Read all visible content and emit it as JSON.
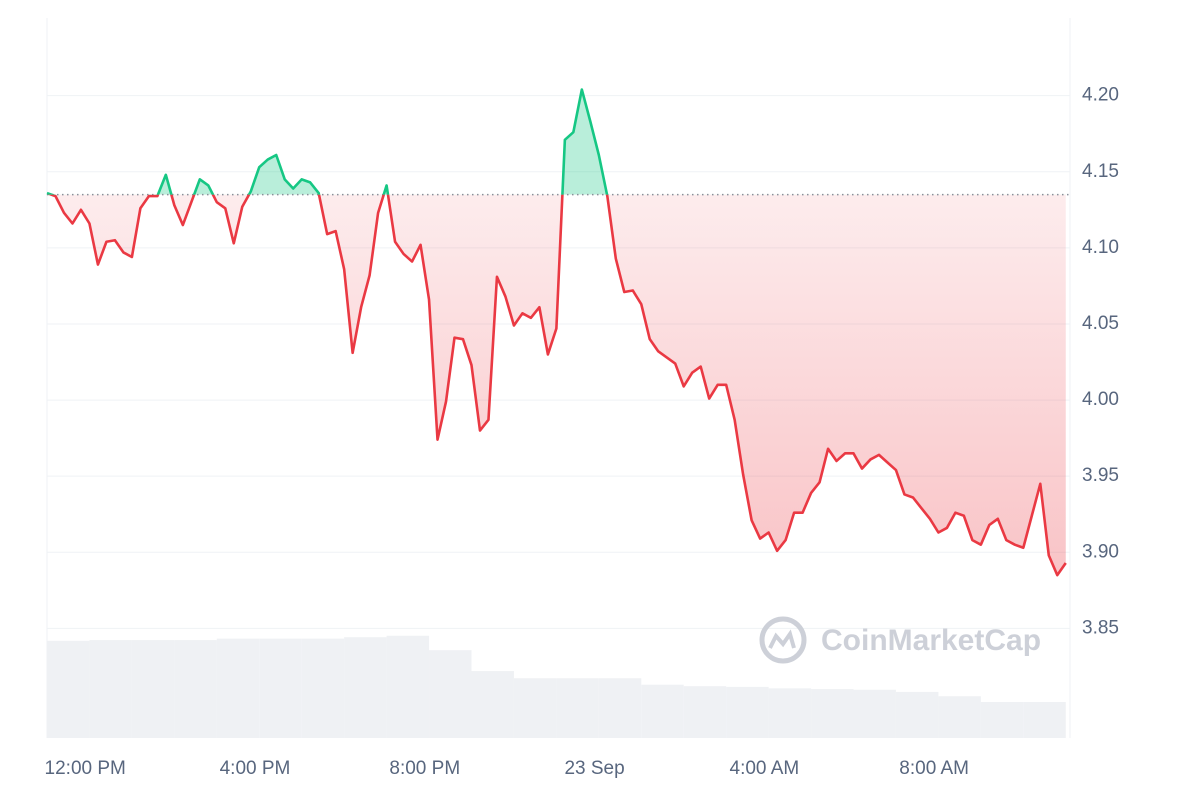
{
  "chart_data": {
    "type": "line",
    "x": [
      -0.9,
      -0.7,
      -0.5,
      -0.3,
      -0.1,
      0.1,
      0.3,
      0.5,
      0.7,
      0.9,
      1.1,
      1.3,
      1.5,
      1.7,
      1.9,
      2.1,
      2.3,
      2.5,
      2.7,
      2.9,
      3.1,
      3.3,
      3.5,
      3.7,
      3.9,
      4.1,
      4.3,
      4.5,
      4.7,
      4.9,
      5.1,
      5.3,
      5.5,
      5.7,
      5.9,
      6.1,
      6.3,
      6.5,
      6.7,
      6.9,
      7.1,
      7.3,
      7.5,
      7.7,
      7.9,
      8.1,
      8.3,
      8.5,
      8.7,
      8.9,
      9.1,
      9.3,
      9.5,
      9.7,
      9.9,
      10.1,
      10.3,
      10.5,
      10.7,
      10.9,
      11.1,
      11.3,
      11.5,
      11.7,
      11.9,
      12.1,
      12.3,
      12.5,
      12.7,
      12.9,
      13.1,
      13.3,
      13.5,
      13.7,
      13.9,
      14.1,
      14.3,
      14.5,
      14.7,
      14.9,
      15.1,
      15.3,
      15.5,
      15.7,
      15.9,
      16.1,
      16.3,
      16.5,
      16.7,
      16.9,
      17.1,
      17.3,
      17.5,
      17.7,
      17.9,
      18.1,
      18.3,
      18.5,
      18.7,
      18.9,
      19.1,
      19.3,
      19.5,
      19.7,
      19.9,
      20.1,
      20.3,
      20.5,
      20.7,
      20.9,
      21.1,
      21.3,
      21.5,
      21.7,
      21.9,
      22.1,
      22.3,
      22.5,
      22.7,
      22.9,
      23.1
    ],
    "values": [
      4.136,
      4.134,
      4.123,
      4.116,
      4.125,
      4.116,
      4.089,
      4.104,
      4.105,
      4.097,
      4.094,
      4.126,
      4.134,
      4.134,
      4.148,
      4.128,
      4.115,
      4.13,
      4.145,
      4.141,
      4.13,
      4.126,
      4.103,
      4.127,
      4.137,
      4.153,
      4.158,
      4.161,
      4.145,
      4.139,
      4.145,
      4.143,
      4.136,
      4.109,
      4.111,
      4.086,
      4.031,
      4.061,
      4.082,
      4.123,
      4.141,
      4.104,
      4.096,
      4.091,
      4.102,
      4.066,
      3.974,
      3.999,
      4.041,
      4.04,
      4.023,
      3.98,
      3.987,
      4.081,
      4.068,
      4.049,
      4.057,
      4.054,
      4.061,
      4.03,
      4.047,
      4.171,
      4.176,
      4.204,
      4.183,
      4.161,
      4.134,
      4.093,
      4.071,
      4.072,
      4.063,
      4.04,
      4.032,
      4.028,
      4.024,
      4.009,
      4.018,
      4.022,
      4.001,
      4.01,
      4.01,
      3.987,
      3.951,
      3.921,
      3.909,
      3.913,
      3.901,
      3.908,
      3.926,
      3.926,
      3.939,
      3.946,
      3.968,
      3.96,
      3.965,
      3.965,
      3.955,
      3.961,
      3.964,
      3.959,
      3.954,
      3.938,
      3.936,
      3.929,
      3.922,
      3.913,
      3.916,
      3.926,
      3.924,
      3.908,
      3.905,
      3.918,
      3.922,
      3.908,
      3.905,
      3.903,
      3.924,
      3.945,
      3.898,
      3.885,
      3.893
    ],
    "baseline": 4.135,
    "up_color": "#16c784",
    "down_color": "#ea3943",
    "xlim": [
      -0.9,
      23.2
    ],
    "xticks": [
      {
        "value": 0,
        "label": "12:00 PM"
      },
      {
        "value": 4,
        "label": "4:00 PM"
      },
      {
        "value": 8,
        "label": "8:00 PM"
      },
      {
        "value": 12,
        "label": "23 Sep"
      },
      {
        "value": 16,
        "label": "4:00 AM"
      },
      {
        "value": 20,
        "label": "8:00 AM"
      }
    ],
    "ylim": [
      3.778,
      4.251
    ],
    "yticks": [
      3.85,
      {
        "value": 3.9,
        "label": "3.90"
      },
      3.95,
      {
        "value": 4,
        "label": "4.00"
      },
      4.05,
      {
        "value": 4.1,
        "label": "4.10"
      },
      4.15,
      {
        "value": 4.2,
        "label": "4.20"
      }
    ],
    "grid": true,
    "volume": {
      "color": "#eff1f4",
      "x": [
        -0.4,
        0.6,
        1.6,
        2.6,
        3.6,
        4.6,
        5.6,
        6.6,
        7.6,
        8.6,
        9.6,
        10.6,
        11.6,
        12.6,
        13.6,
        14.6,
        15.6,
        16.6,
        17.6,
        18.6,
        19.6,
        20.6,
        21.6,
        22.6
      ],
      "values": [
        13.5,
        13.6,
        13.6,
        13.6,
        13.8,
        13.8,
        13.8,
        14.0,
        14.2,
        12.2,
        9.3,
        8.3,
        8.3,
        8.3,
        7.4,
        7.2,
        7.1,
        6.9,
        6.8,
        6.7,
        6.4,
        5.8,
        5.0,
        5.0
      ]
    },
    "y2lim": [
      0,
      100
    ],
    "watermark": "CoinMarketCap"
  }
}
